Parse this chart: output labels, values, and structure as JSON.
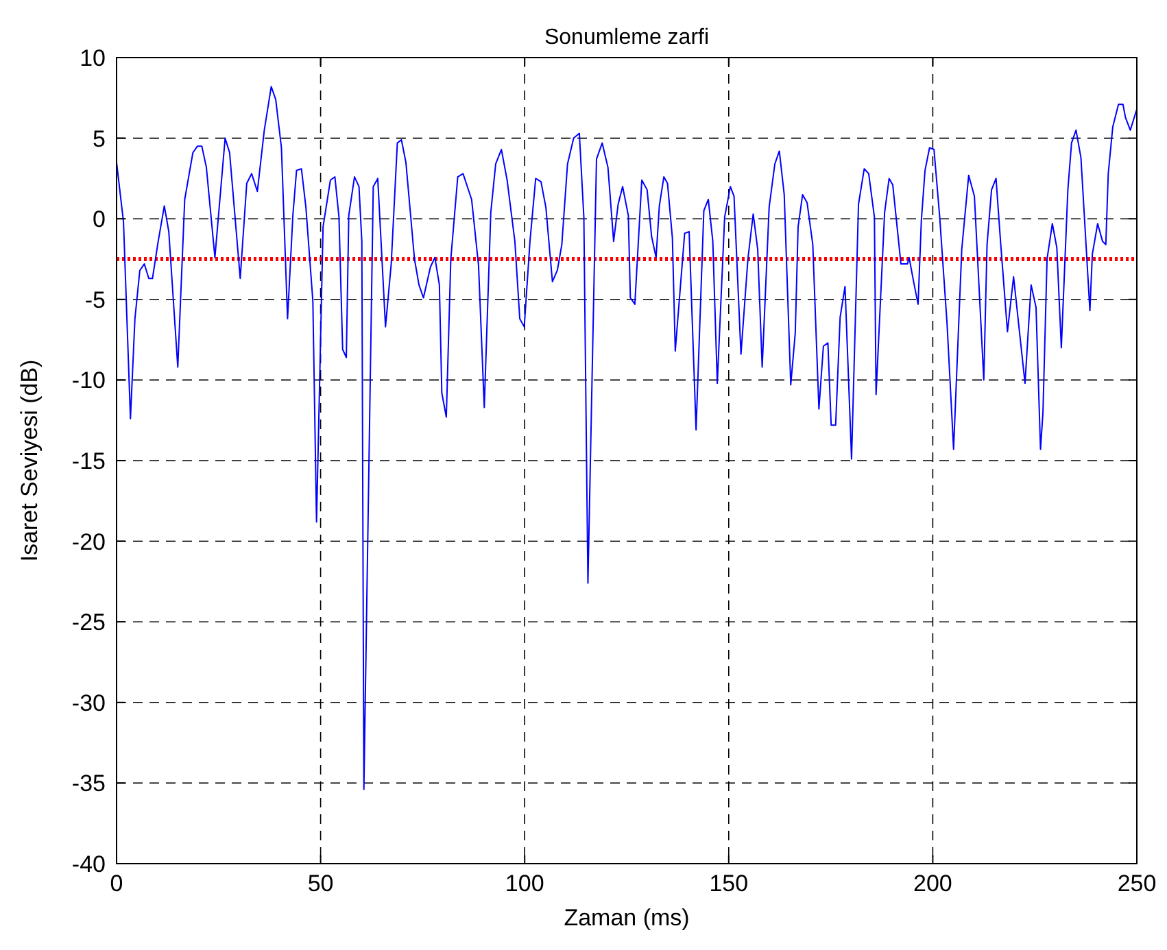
{
  "chart_data": {
    "type": "line",
    "title": "Sonumleme zarfi",
    "xlabel": "Zaman (ms)",
    "ylabel": "Isaret Seviyesi (dB)",
    "series": [
      {
        "color": "#0000ff",
        "x": [
          0,
          1.7,
          3.4,
          4.5,
          5.7,
          6.8,
          7.9,
          8.8,
          10.2,
          11.7,
          12.8,
          15,
          16.7,
          18.7,
          19.8,
          20.9,
          22,
          24.1,
          26.6,
          27.7,
          30.3,
          31.9,
          33.1,
          34.5,
          36.2,
          37.9,
          39,
          40.4,
          41.9,
          43.2,
          44.1,
          45.3,
          46.4,
          48.1,
          49,
          50.6,
          52.4,
          53.5,
          54.5,
          55.4,
          56.3,
          56.9,
          58.3,
          59.4,
          60.1,
          60.6,
          62.9,
          64,
          65.9,
          67.3,
          68.8,
          69.8,
          70.9,
          73,
          74.1,
          75.2,
          76.9,
          78,
          79.1,
          79.7,
          80.8,
          81.9,
          83.6,
          84.9,
          87,
          88.7,
          90.1,
          91.7,
          92.9,
          94.3,
          95.7,
          97.6,
          98.8,
          99.9,
          101.3,
          102.7,
          104,
          105.2,
          106.8,
          108,
          109.1,
          110.5,
          112,
          113.4,
          114.5,
          115.5,
          117.6,
          119,
          120.4,
          121.8,
          122.9,
          124,
          125.4,
          125.9,
          127,
          128.7,
          130,
          131.1,
          132.2,
          133,
          134.1,
          135,
          136.2,
          136.9,
          139.2,
          140.3,
          142,
          143.9,
          145,
          146.1,
          147.2,
          149,
          150.4,
          151.3,
          153,
          154.7,
          156,
          157.1,
          158.2,
          159.9,
          161.3,
          162.4,
          163.6,
          165.2,
          166.3,
          167,
          168.1,
          169.2,
          170.6,
          172.1,
          173.2,
          174.3,
          175.1,
          176.2,
          177.3,
          178.5,
          180.1,
          181.8,
          183.2,
          184.3,
          185.7,
          186.1,
          188.2,
          189.3,
          190.2,
          192.2,
          193.8,
          194.2,
          195.3,
          196.4,
          197.2,
          198.1,
          199.2,
          200.3,
          201.7,
          203.5,
          205.1,
          207.1,
          208.8,
          210.2,
          212.5,
          213.3,
          214.4,
          215.5,
          216.6,
          218.3,
          219.8,
          222.6,
          224.1,
          225.3,
          226.4,
          227,
          228,
          229.3,
          230.4,
          231.5,
          233.1,
          234,
          235.1,
          236.3,
          238.5,
          239.1,
          240.4,
          241.6,
          242.4,
          243,
          244.1,
          245.5,
          246.6,
          247.2,
          248.4,
          250
        ],
        "values": [
          3.5,
          -0.2,
          -12.4,
          -6.2,
          -3.2,
          -2.8,
          -3.7,
          -3.7,
          -1.4,
          0.8,
          -0.8,
          -9.2,
          1.2,
          4.1,
          4.5,
          4.5,
          3.2,
          -2.4,
          5,
          4.1,
          -3.7,
          2.2,
          2.8,
          1.7,
          5.5,
          8.2,
          7.4,
          4.4,
          -6.2,
          0.2,
          3,
          3.1,
          0.7,
          -5.1,
          -18.8,
          -0.5,
          2.4,
          2.6,
          0.1,
          -8.1,
          -8.6,
          0.2,
          2.6,
          2,
          -1.4,
          -35.4,
          2,
          2.5,
          -6.7,
          -2.8,
          4.7,
          4.9,
          3.5,
          -2.5,
          -4.1,
          -4.9,
          -3,
          -2.4,
          -4.1,
          -10.8,
          -12.3,
          -2.5,
          2.6,
          2.8,
          1.2,
          -2.9,
          -11.7,
          0.4,
          3.4,
          4.3,
          2.4,
          -1.4,
          -6.2,
          -6.7,
          -1.4,
          2.5,
          2.3,
          0.7,
          -3.9,
          -3.2,
          -1.6,
          3.4,
          5,
          5.3,
          0.1,
          -22.6,
          3.7,
          4.7,
          3.2,
          -1.4,
          0.9,
          2,
          0.2,
          -4.9,
          -5.3,
          2.4,
          1.8,
          -1.1,
          -2.4,
          0.8,
          2.6,
          2.2,
          -1.2,
          -8.2,
          -0.9,
          -0.8,
          -13.1,
          0.5,
          1.2,
          -1.4,
          -10.2,
          0.1,
          2,
          1.4,
          -8.4,
          -2.5,
          0.3,
          -1.9,
          -9.2,
          0.7,
          3.4,
          4.2,
          1.5,
          -10.3,
          -7.1,
          -0.5,
          1.5,
          1,
          -1.6,
          -11.8,
          -7.9,
          -7.7,
          -12.8,
          -12.8,
          -6.1,
          -4.2,
          -14.9,
          0.9,
          3.1,
          2.8,
          0.1,
          -10.9,
          0.4,
          2.5,
          2.1,
          -2.8,
          -2.8,
          -2.4,
          -3.9,
          -5.3,
          -0.1,
          3,
          4.4,
          4.3,
          0.1,
          -6.5,
          -14.3,
          -1.9,
          2.7,
          1.4,
          -10,
          -1.6,
          1.8,
          2.5,
          -1.4,
          -7,
          -3.6,
          -10.2,
          -4.1,
          -5.5,
          -14.3,
          -12,
          -2.5,
          -0.3,
          -1.8,
          -8,
          1.8,
          4.7,
          5.5,
          3.8,
          -5.7,
          -2.2,
          -0.3,
          -1.4,
          -1.6,
          2.8,
          5.7,
          7.1,
          7.1,
          6.3,
          5.5,
          6.8
        ]
      }
    ],
    "xlim": [
      0,
      250
    ],
    "xticks": [
      0,
      50,
      100,
      150,
      200,
      250
    ],
    "ylim": [
      -40,
      10
    ],
    "yticks": [
      -40,
      -35,
      -30,
      -25,
      -20,
      -15,
      -10,
      -5,
      0,
      5,
      10
    ],
    "grid": true,
    "ref_lines": [
      {
        "axis": "y",
        "value": -2.5,
        "color": "#ff0000",
        "line_style": "dotted"
      }
    ]
  }
}
